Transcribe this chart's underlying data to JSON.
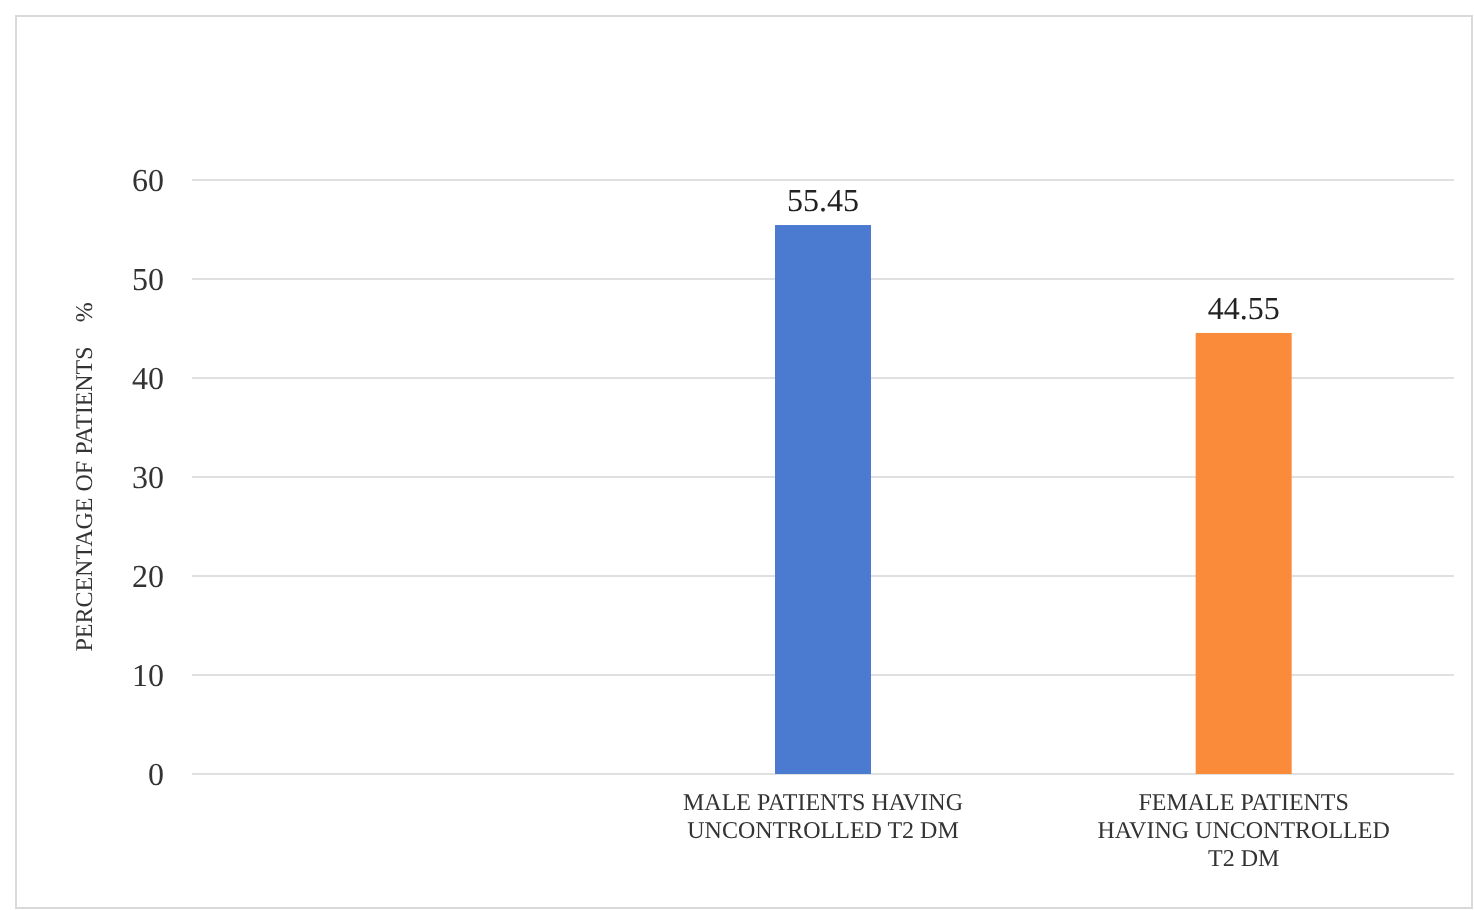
{
  "chart_data": {
    "type": "bar",
    "ylabel": "PERCENTAGE OF PATIENTS    %",
    "categories": [
      null,
      "MALE PATIENTS  HAVING UNCONTROLLED T2 DM",
      "FEMALE PATIENTS HAVING UNCONTROLLED T2 DM"
    ],
    "values": [
      null,
      55.45,
      44.55
    ],
    "colors": [
      null,
      "#4a7bd0",
      "#f98b3a"
    ],
    "ylim": [
      0,
      60
    ],
    "yticks": [
      0,
      10,
      20,
      30,
      40,
      50,
      60
    ],
    "grid": "y",
    "data_labels": true
  }
}
